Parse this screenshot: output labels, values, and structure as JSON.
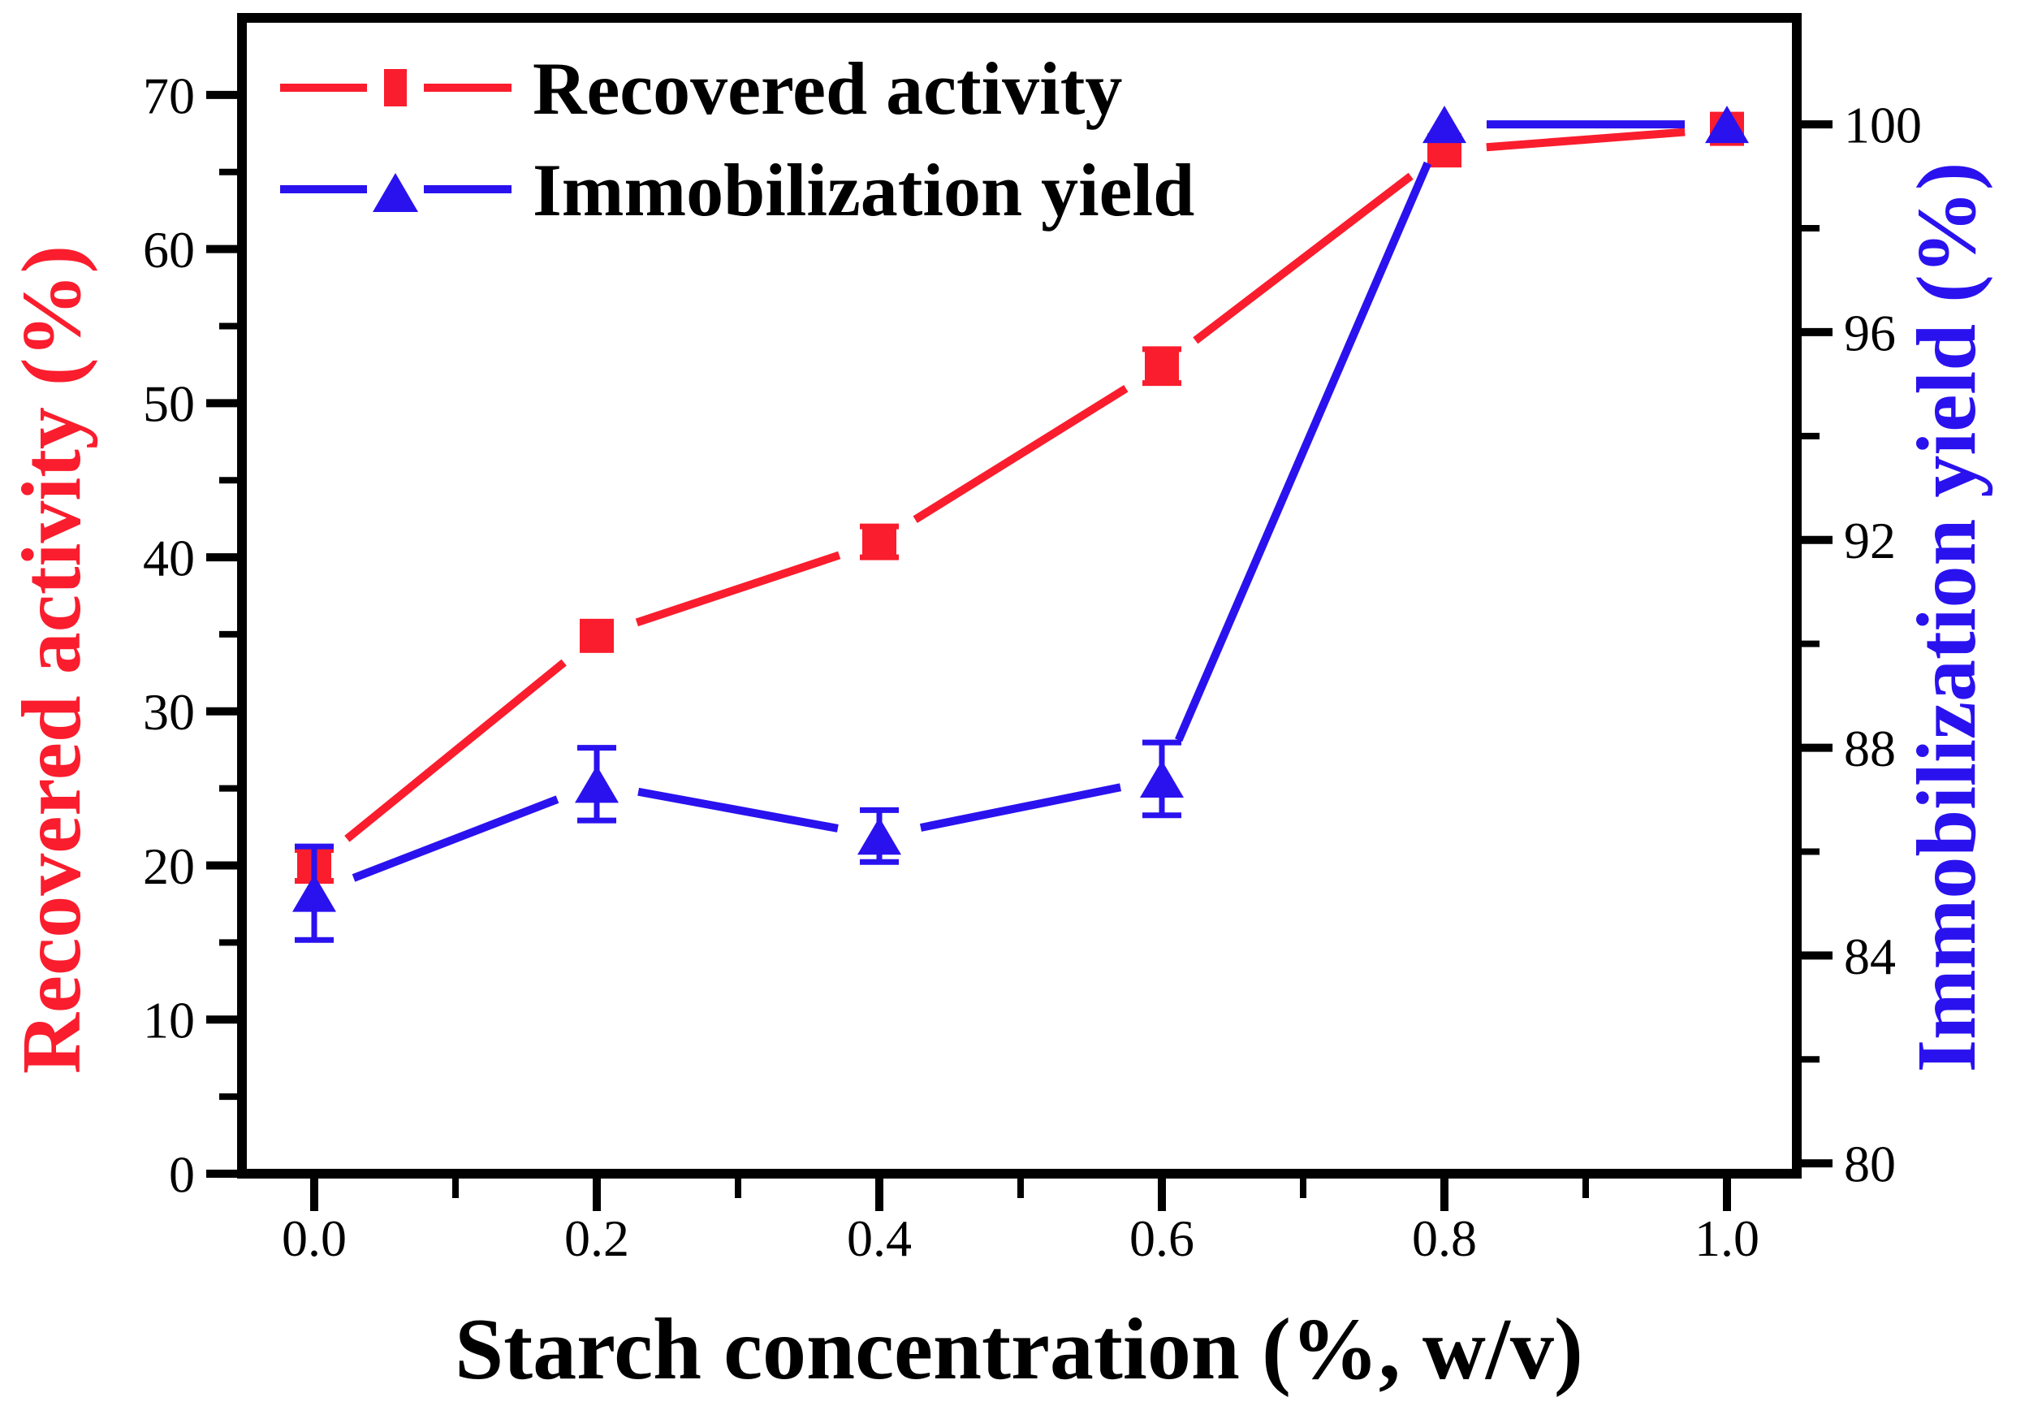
{
  "chart_data": {
    "type": "line",
    "x_axis": {
      "label": "Starch concentration (%, w/v)",
      "major_ticks": [
        0.0,
        0.2,
        0.4,
        0.6,
        0.8,
        1.0
      ],
      "tick_labels": [
        "0.0",
        "0.2",
        "0.4",
        "0.6",
        "0.8",
        "1.0"
      ],
      "minor_ticks": [
        0.1,
        0.3,
        0.5,
        0.7,
        0.9
      ]
    },
    "left_axis": {
      "label": "Recovered activity (%)",
      "color": "#fa1d2d",
      "min": 0,
      "max": 75,
      "major_ticks": [
        0,
        10,
        20,
        30,
        40,
        50,
        60,
        70
      ],
      "tick_labels": [
        "0",
        "10",
        "20",
        "30",
        "40",
        "50",
        "60",
        "70"
      ],
      "minor_ticks": [
        5,
        15,
        25,
        35,
        45,
        55,
        65
      ]
    },
    "right_axis": {
      "label": "Immobilization yield (%)",
      "color": "#2a12ef",
      "min": 79.8,
      "max": 102.05,
      "major_ticks": [
        80,
        84,
        88,
        92,
        96,
        100
      ],
      "tick_labels": [
        "80",
        "84",
        "88",
        "92",
        "96",
        "100"
      ],
      "minor_ticks": [
        82,
        86,
        90,
        94,
        98
      ]
    },
    "x": [
      0.0,
      0.2,
      0.4,
      0.6,
      0.8,
      1.0
    ],
    "series": [
      {
        "name": "Recovered activity",
        "axis": "left",
        "color": "#fa1d2d",
        "marker": "square",
        "values": [
          20.0,
          34.9,
          41.0,
          52.4,
          66.4,
          67.8
        ],
        "errors": [
          1.0,
          0,
          1.0,
          1.1,
          0,
          0
        ]
      },
      {
        "name": "Immobilization yield",
        "axis": "right",
        "color": "#2a12ef",
        "marker": "triangle",
        "values": [
          85.2,
          87.3,
          86.3,
          87.4,
          100.0,
          100.0
        ],
        "errors": [
          0.9,
          0.7,
          0.5,
          0.7,
          0,
          0
        ]
      }
    ],
    "legend": {
      "position": "top-left",
      "entries": [
        "Recovered activity",
        "Immobilization yield"
      ]
    },
    "grid": false,
    "background": "#ffffff",
    "frame_color": "#000000"
  }
}
